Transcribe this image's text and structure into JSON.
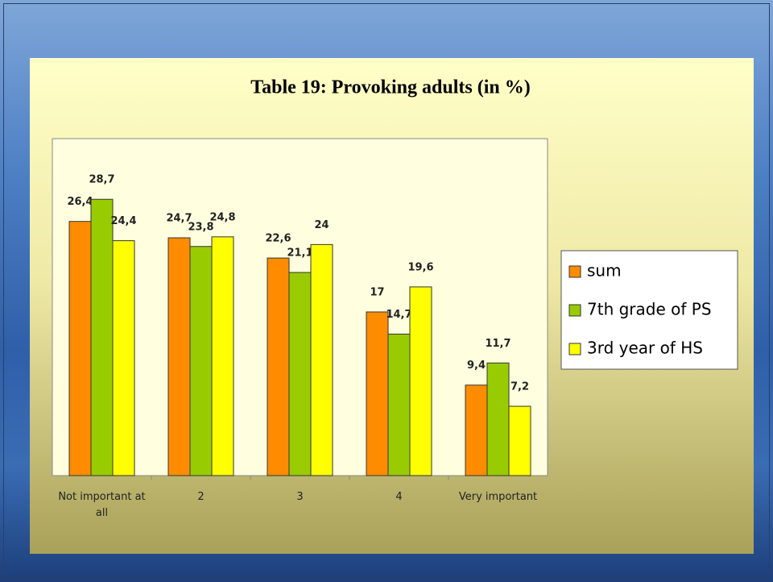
{
  "chart_data": {
    "type": "bar",
    "title": "Table 19: Provoking adults (in %)",
    "categories": [
      "Not important at all",
      "2",
      "3",
      "4",
      "Very important"
    ],
    "series": [
      {
        "name": "sum",
        "color": "#ff8c00",
        "values": [
          26.4,
          24.7,
          22.6,
          17,
          9.4
        ],
        "value_labels": [
          "26,4",
          "24,7",
          "22,6",
          "17",
          "9,4"
        ]
      },
      {
        "name": "7th grade of PS",
        "color": "#99cc00",
        "values": [
          28.7,
          23.8,
          21.1,
          14.7,
          11.7
        ],
        "value_labels": [
          "28,7",
          "23,8",
          "21,1",
          "14,7",
          "11,7"
        ]
      },
      {
        "name": "3rd year of HS",
        "color": "#ffff00",
        "values": [
          24.4,
          24.8,
          24,
          19.6,
          7.2
        ],
        "value_labels": [
          "24,4",
          "24,8",
          "24",
          "19,6",
          "7,2"
        ]
      }
    ],
    "ylim": [
      0,
      35
    ],
    "legend": "right"
  }
}
